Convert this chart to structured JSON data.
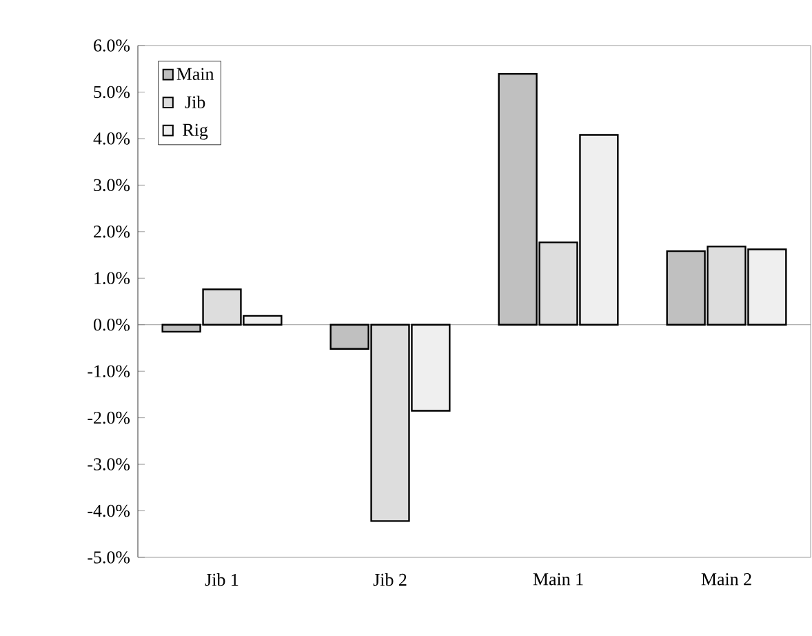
{
  "chart_data": {
    "type": "bar",
    "categories": [
      "Jib 1",
      "Jib 2",
      "Main 1",
      "Main 2"
    ],
    "series": [
      {
        "name": "Main",
        "color": "#c0c0c0",
        "values": [
          -0.15,
          -0.52,
          5.39,
          1.58
        ]
      },
      {
        "name": "Jib",
        "color": "#dddddd",
        "values": [
          0.76,
          -4.22,
          1.77,
          1.68
        ]
      },
      {
        "name": "Rig",
        "color": "#efefef",
        "values": [
          0.19,
          -1.85,
          4.08,
          1.62
        ]
      }
    ],
    "ylim": [
      -5,
      6
    ],
    "yticks": [
      {
        "value": -5,
        "label": "-5.0%"
      },
      {
        "value": -4,
        "label": "-4.0%"
      },
      {
        "value": -3,
        "label": "-3.0%"
      },
      {
        "value": -2,
        "label": "-2.0%"
      },
      {
        "value": -1,
        "label": "-1.0%"
      },
      {
        "value": 0,
        "label": "0.0%"
      },
      {
        "value": 1,
        "label": "1.0%"
      },
      {
        "value": 2,
        "label": "2.0%"
      },
      {
        "value": 3,
        "label": "3.0%"
      },
      {
        "value": 4,
        "label": "4.0%"
      },
      {
        "value": 5,
        "label": "5.0%"
      },
      {
        "value": 6,
        "label": "6.0%"
      }
    ],
    "legend": "top left"
  }
}
